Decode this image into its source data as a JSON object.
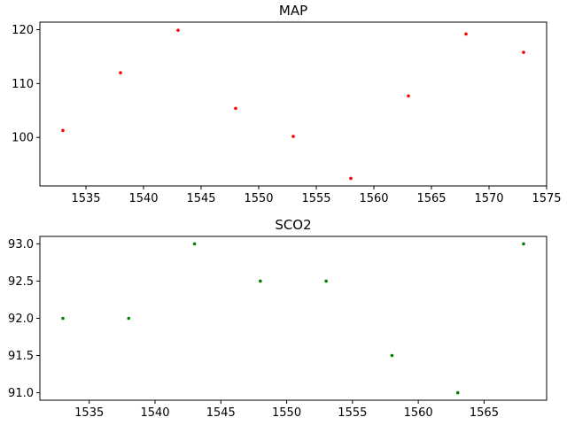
{
  "chart_data": [
    {
      "type": "scatter",
      "title": "MAP",
      "xlabel": "",
      "ylabel": "",
      "xlim": [
        1531,
        1575
      ],
      "ylim": [
        91,
        121.4
      ],
      "xticks": [
        1535,
        1540,
        1545,
        1550,
        1555,
        1560,
        1565,
        1570,
        1575
      ],
      "yticks": [
        100,
        110,
        120
      ],
      "color": "#ff0000",
      "grid": false,
      "series": [
        {
          "x": [
            1533,
            1538,
            1543,
            1548,
            1553,
            1558,
            1563,
            1568,
            1573
          ],
          "y": [
            101.3,
            112.0,
            119.9,
            105.4,
            100.2,
            92.4,
            107.7,
            119.2,
            115.8
          ]
        }
      ]
    },
    {
      "type": "scatter",
      "title": "SCO2",
      "xlabel": "",
      "ylabel": "",
      "xlim": [
        1531.25,
        1569.75
      ],
      "ylim": [
        90.9,
        93.1
      ],
      "xticks": [
        1535,
        1540,
        1545,
        1550,
        1555,
        1560,
        1565
      ],
      "yticks": [
        "91.0",
        "91.5",
        "92.0",
        "92.5",
        "93.0"
      ],
      "color": "#008000",
      "grid": false,
      "series": [
        {
          "x": [
            1533,
            1538,
            1543,
            1548,
            1553,
            1558,
            1563,
            1568
          ],
          "y": [
            92.0,
            92.0,
            93.0,
            92.5,
            92.5,
            91.5,
            91.0,
            93.0
          ]
        }
      ]
    }
  ]
}
